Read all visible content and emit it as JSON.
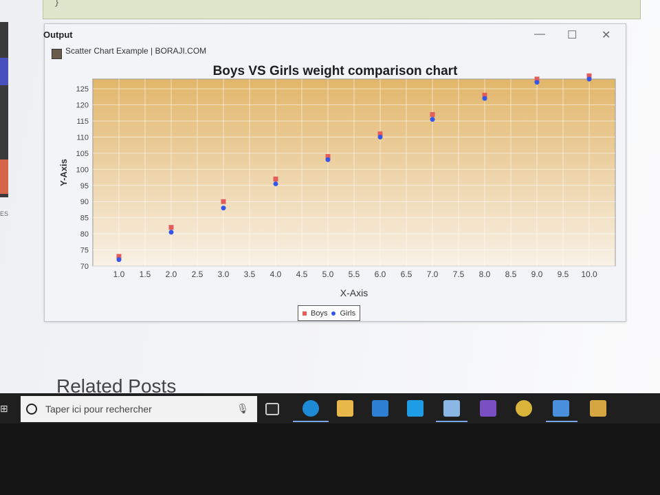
{
  "ide": {
    "code_tail": "}",
    "side_text": "ES",
    "output_label": "Output"
  },
  "window": {
    "title": "Scatter Chart Example | BORAJI.COM",
    "controls": {
      "minimize": "—",
      "maximize": "☐",
      "close": "✕"
    }
  },
  "chart_data": {
    "type": "scatter",
    "title": "Boys VS Girls weight comparison chart",
    "xlabel": "X-Axis",
    "ylabel": "Y-Axis",
    "xlim": [
      0.5,
      10.5
    ],
    "ylim": [
      70,
      128
    ],
    "x_ticks": [
      "1.0",
      "1.5",
      "2.0",
      "2.5",
      "3.0",
      "3.5",
      "4.0",
      "4.5",
      "5.0",
      "5.5",
      "6.0",
      "6.5",
      "7.0",
      "7.5",
      "8.0",
      "8.5",
      "9.0",
      "9.5",
      "10.0"
    ],
    "y_ticks": [
      "70",
      "75",
      "80",
      "85",
      "90",
      "95",
      "100",
      "105",
      "110",
      "115",
      "120",
      "125"
    ],
    "grid": true,
    "legend_position": "bottom",
    "series": [
      {
        "name": "Boys",
        "marker": "square",
        "color": "#e45c5c",
        "x": [
          1,
          2,
          3,
          4,
          5,
          6,
          7,
          8,
          9,
          10
        ],
        "y": [
          73,
          82,
          90,
          97,
          104,
          111,
          117,
          123,
          128,
          129
        ]
      },
      {
        "name": "Girls",
        "marker": "circle",
        "color": "#3557e8",
        "x": [
          1,
          2,
          3,
          4,
          5,
          6,
          7,
          8,
          9,
          10
        ],
        "y": [
          72,
          80.5,
          88,
          95.5,
          103,
          110,
          115.5,
          122,
          127,
          128
        ]
      }
    ]
  },
  "page": {
    "related_heading": "Related Posts"
  },
  "taskbar": {
    "search_placeholder": "Taper ici pour rechercher",
    "icons": [
      "task-view-icon",
      "edge-icon",
      "file-explorer-icon",
      "mail-icon",
      "vscode-icon",
      "cube-app-icon",
      "visual-studio-icon",
      "star-app-icon",
      "media-app-icon",
      "puzzle-app-icon"
    ]
  },
  "colors": {
    "plot_bg_top": "#e2b66a",
    "plot_bg_bottom": "#f8f1e6",
    "boys": "#e45c5c",
    "girls": "#3557e8",
    "taskbar": "#1f1f1f"
  }
}
